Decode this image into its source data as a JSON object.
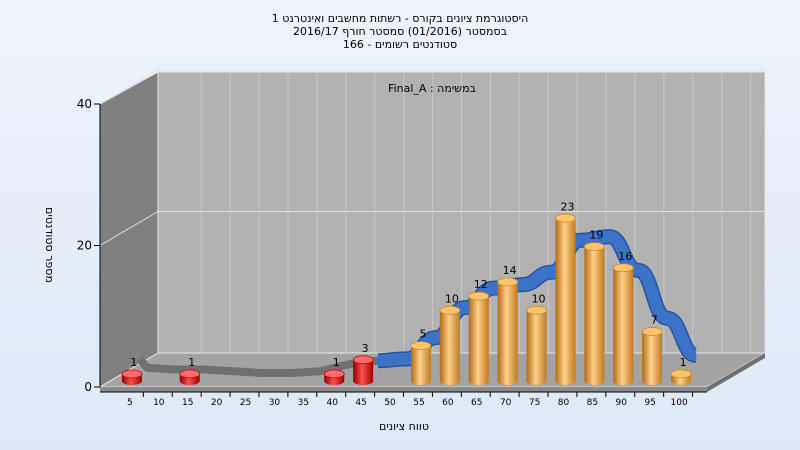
{
  "chart_data": {
    "type": "bar",
    "title_lines": [
      "היסטוגרמת ציונים בקורס - רשתות מחשבים ואינטרנט 1",
      "בסמסטר  (01/2016)  סמסטר חורף 2016/17",
      "סטודנטים רשומים - 166"
    ],
    "inner_label": "במשימה : Final_A",
    "xlabel": "טווח ציונים",
    "ylabel": "מספר סטודנטים",
    "ylim": [
      0,
      40
    ],
    "y_ticks": [
      "0",
      "20",
      "40"
    ],
    "x_ticks": [
      "5",
      "10",
      "15",
      "20",
      "25",
      "30",
      "35",
      "40",
      "45",
      "50",
      "55",
      "60",
      "65",
      "70",
      "75",
      "80",
      "85",
      "90",
      "95",
      "100"
    ],
    "values": [
      1,
      0,
      1,
      0,
      0,
      0,
      0,
      1,
      3,
      0,
      5,
      10,
      12,
      14,
      10,
      23,
      19,
      16,
      7,
      1
    ],
    "value_labels": [
      "1",
      "",
      "1",
      "",
      "",
      "",
      "",
      "1",
      "3",
      "",
      "5",
      "10",
      "12",
      "14",
      "10",
      "23",
      "19",
      "16",
      "7",
      "1"
    ],
    "colors": {
      "fail": "#e01010",
      "pass": "#f2a33a",
      "curve": "#3c73c8",
      "curve_flat": "#707070"
    }
  }
}
